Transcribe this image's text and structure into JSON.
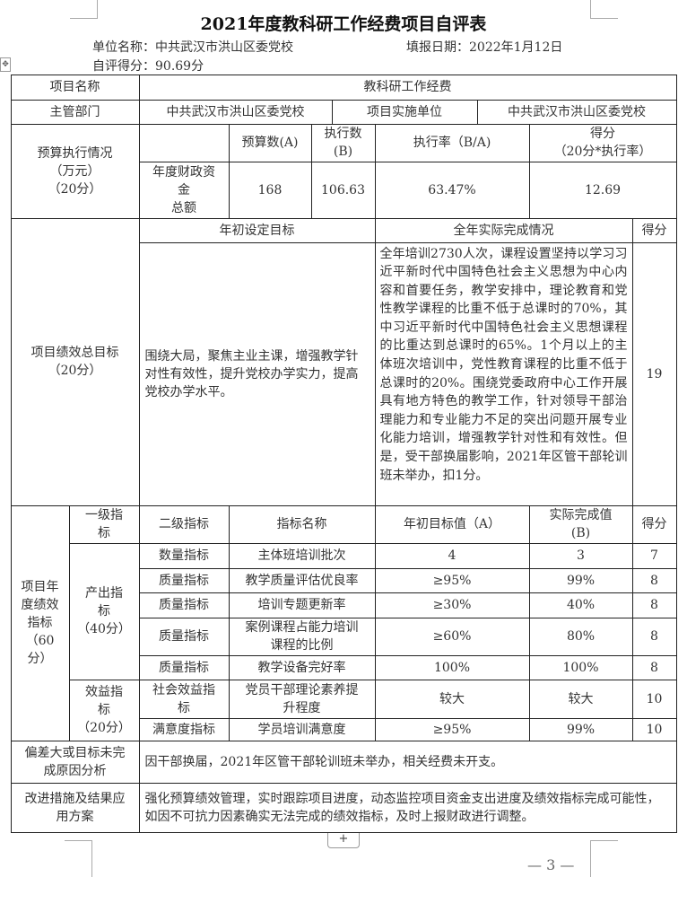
{
  "document": {
    "title": "2021年度教科研工作经费项目自评表",
    "unit_label": "单位名称：中共武汉市洪山区委党校",
    "date_label": "填报日期：2022年1月12日",
    "score_label": "自评得分：90.69分",
    "page_number": "— 3 —",
    "add_row_button": "+",
    "move_handle": "✥"
  },
  "table": {
    "project_name_label": "项目名称",
    "project_name": "教科研工作经费",
    "dept_label": "主管部门",
    "dept": "中共武汉市洪山区委党校",
    "impl_unit_label": "项目实施单位",
    "impl_unit": "中共武汉市洪山区委党校",
    "budget": {
      "section_label": "预算执行情况\n（万元）\n（20分）",
      "col_budget": "预算数(A)",
      "col_executed": "执行数\n(B)",
      "col_rate": "执行率（B/A)",
      "col_score": "得分\n（20分*执行率）",
      "row_label": "年度财政资\n金\n总额",
      "budget": "168",
      "executed": "106.63",
      "rate": "63.47%",
      "score": "12.69"
    },
    "goal": {
      "section_label": "项目绩效总目标\n（20分）",
      "col_target": "年初设定目标",
      "col_actual": "全年实际完成情况",
      "col_score": "得分",
      "target": "围绕大局，聚焦主业主课，增强教学针对性有效性，提升党校办学实力，提高党校办学水平。",
      "actual": "全年培训2730人次，课程设置坚持以学习习近平新时代中国特色社会主义思想为中心内容和首要任务，教学安排中，理论教育和党性教学课程的比重不低于总课时的70%，其中习近平新时代中国特色社会主义思想课程的比重达到总课时的65%。1个月以上的主体班次培训中，党性教育课程的比重不低于总课时的20%。围绕党委政府中心工作开展具有地方特色的教学工作，针对领导干部治理能力和专业能力不足的突出问题开展专业化能力培训，增强教学针对性和有效性。但是，受干部换届影响，2021年区管干部轮训班未举办，扣1分。",
      "score": "19"
    },
    "indicators": {
      "section_label": "项目年\n度绩效\n指标\n（60\n分）",
      "col_level1": "一级指\n标",
      "col_level2": "二级指标",
      "col_name": "指标名称",
      "col_target": "年初目标值（A）",
      "col_actual": "实际完成值\n(B)",
      "col_score": "得分",
      "group_output": "产出指\n标\n（40分）",
      "group_benefit": "效益指\n标\n（20分）",
      "rows": [
        {
          "level2": "数量指标",
          "name": "主体班培训批次",
          "target": "4",
          "actual": "3",
          "score": "7"
        },
        {
          "level2": "质量指标",
          "name": "教学质量评估优良率",
          "target": "≥95%",
          "actual": "99%",
          "score": "8"
        },
        {
          "level2": "质量指标",
          "name": "培训专题更新率",
          "target": "≥30%",
          "actual": "40%",
          "score": "8"
        },
        {
          "level2": "质量指标",
          "name": "案例课程占能力培训\n课程的比例",
          "target": "≥60%",
          "actual": "80%",
          "score": "8"
        },
        {
          "level2": "质量指标",
          "name": "教学设备完好率",
          "target": "100%",
          "actual": "100%",
          "score": "8"
        },
        {
          "level2": "社会效益指\n标",
          "name": "党员干部理论素养提\n升程度",
          "target": "较大",
          "actual": "较大",
          "score": "10"
        },
        {
          "level2": "满意度指标",
          "name": "学员培训满意度",
          "target": "≥95%",
          "actual": "99%",
          "score": "10"
        }
      ]
    },
    "deviation_label": "偏差大或目标未完\n成原因分析",
    "deviation": "因干部换届，2021年区管干部轮训班未举办，相关经费未开支。",
    "improvement_label": "改进措施及结果应\n用方案",
    "improvement": "强化预算绩效管理，实时跟踪项目进度，动态监控项目资金支出进度及绩效指标完成可能性，如因不可抗力因素确实无法完成的绩效指标，及时上报财政进行调整。"
  }
}
